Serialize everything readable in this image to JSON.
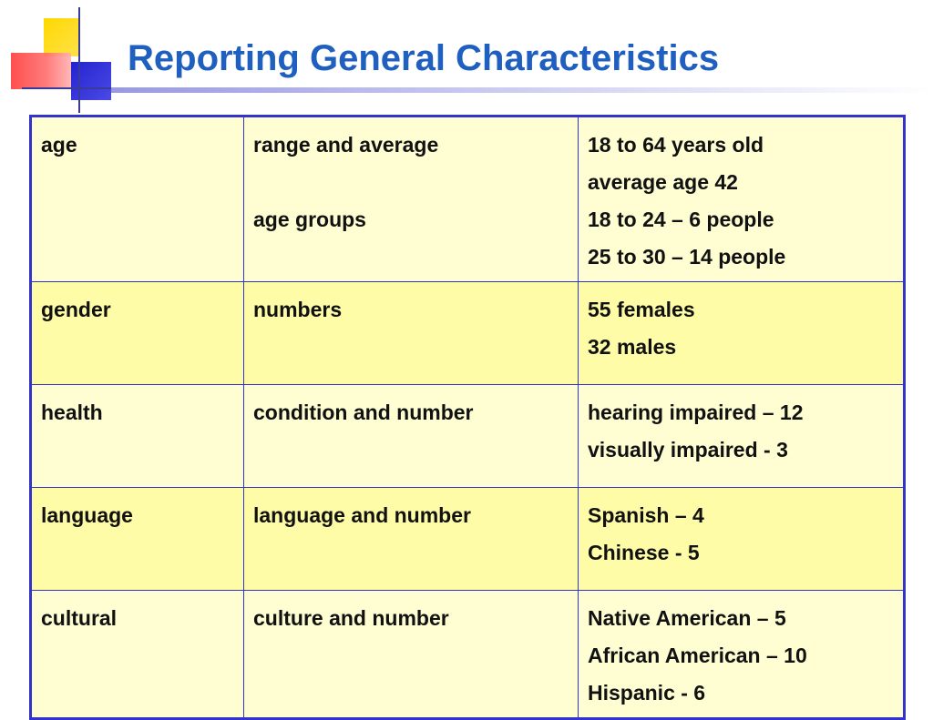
{
  "title": "Reporting General Characteristics",
  "rows": [
    {
      "characteristic": "age",
      "method_lines": [
        "range and average",
        "",
        "age groups"
      ],
      "results": [
        "18 to 64 years old",
        "average age 42",
        "18 to 24 – 6 people",
        "25 to 30 – 14 people"
      ]
    },
    {
      "characteristic": "gender",
      "method_lines": [
        "numbers"
      ],
      "results": [
        "55 females",
        "32 males"
      ]
    },
    {
      "characteristic": "health",
      "method_lines": [
        "condition and number"
      ],
      "results": [
        "hearing impaired – 12",
        "visually impaired - 3"
      ]
    },
    {
      "characteristic": "language",
      "method_lines": [
        "language and number"
      ],
      "results": [
        "Spanish – 4",
        "Chinese - 5"
      ]
    },
    {
      "characteristic": "cultural",
      "method_lines": [
        "culture and number"
      ],
      "results": [
        "Native American – 5",
        "African American – 10",
        "Hispanic - 6"
      ]
    }
  ],
  "colors": {
    "title": "#1f5fbf",
    "border": "#3333cc",
    "row_light": "#fefed2",
    "row_dark": "#fefca6"
  }
}
